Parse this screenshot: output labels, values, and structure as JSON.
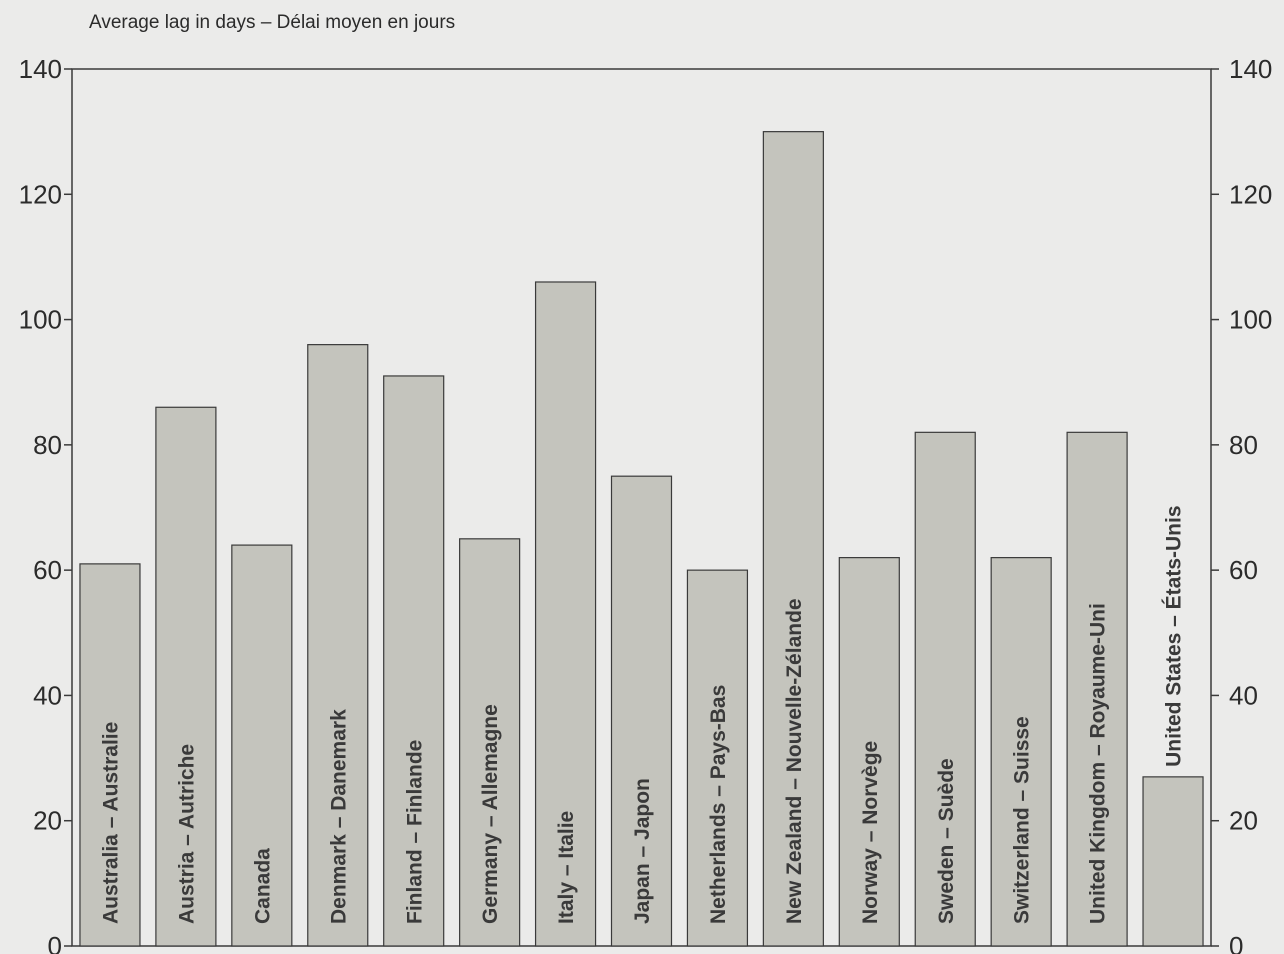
{
  "caption": "Average lag in days – Délai moyen en jours",
  "colors": {
    "background": "#ebebea",
    "bar_fill": "#c4c4bd",
    "bar_stroke": "#3a3a3a",
    "axis": "#3a3a3a",
    "tick_text": "#2b2b2b",
    "bar_label": "#3a3a3a"
  },
  "chart_data": {
    "type": "bar",
    "orientation": "vertical",
    "title": "",
    "ylabel": "Average lag in days – Délai moyen en jours",
    "xlabel": "",
    "ylim": [
      0,
      140
    ],
    "yticks": [
      0,
      20,
      40,
      60,
      80,
      100,
      120,
      140
    ],
    "y_axis_sides": [
      "left",
      "right"
    ],
    "grid": false,
    "legend": "none",
    "categories": [
      "Australia – Australie",
      "Austria – Autriche",
      "Canada",
      "Denmark – Danemark",
      "Finland – Finlande",
      "Germany – Allemagne",
      "Italy – Italie",
      "Japan – Japon",
      "Netherlands – Pays-Bas",
      "New Zealand – Nouvelle-Zélande",
      "Norway – Norvège",
      "Sweden – Suède",
      "Switzerland – Suisse",
      "United Kingdom – Royaume-Uni",
      "United States – États-Unis"
    ],
    "values": [
      61,
      86,
      64,
      96,
      91,
      65,
      106,
      75,
      60,
      130,
      62,
      82,
      62,
      82,
      27
    ],
    "category_labels_placement": "vertical text inside bars; above bar when bar is short"
  }
}
